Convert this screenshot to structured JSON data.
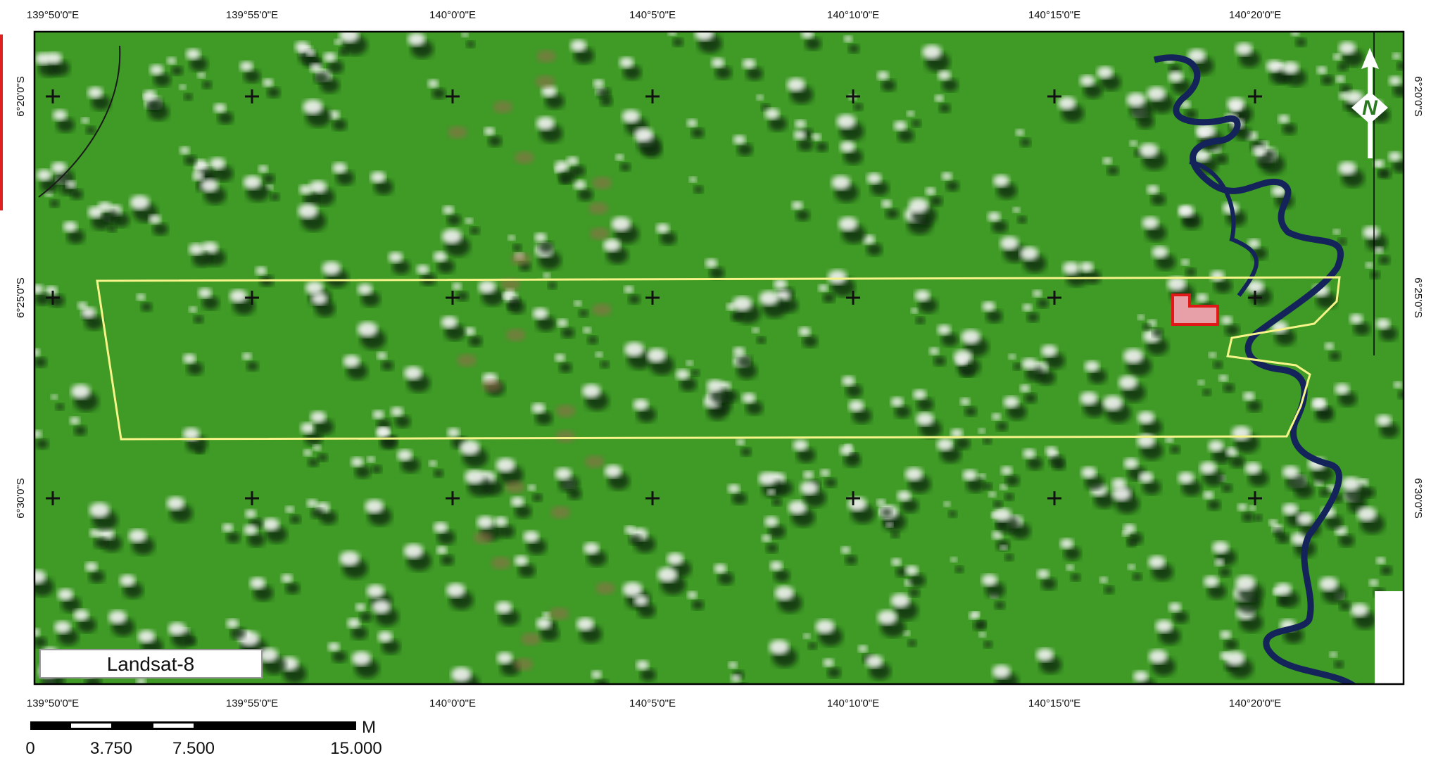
{
  "map": {
    "longitude_labels": [
      "139°50'0\"E",
      "139°55'0\"E",
      "140°0'0\"E",
      "140°5'0\"E",
      "140°10'0\"E",
      "140°15'0\"E",
      "140°20'0\"E"
    ],
    "latitude_labels": [
      "6°20'0\"S",
      "6°25'0\"S",
      "6°30'0\"S"
    ],
    "image_label": "Landsat-8",
    "north_label": "N",
    "scale_bar": {
      "labels": [
        "0",
        "3.750",
        "7.500",
        "15.000"
      ],
      "unit": "M"
    }
  }
}
